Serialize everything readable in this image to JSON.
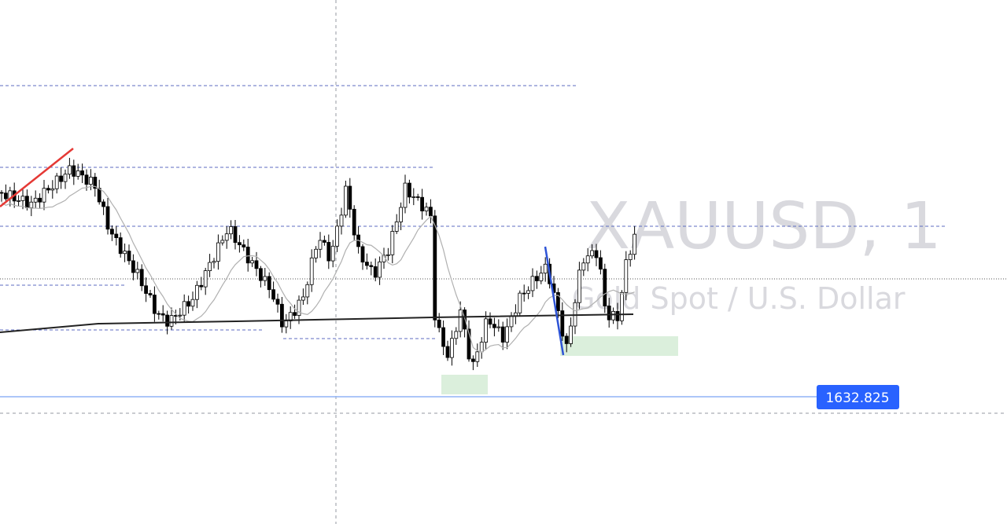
{
  "watermark": {
    "symbol": "XAUUSD, 1",
    "description": "Gold Spot / U.S. Dollar"
  },
  "price_label": "1632.825"
}
